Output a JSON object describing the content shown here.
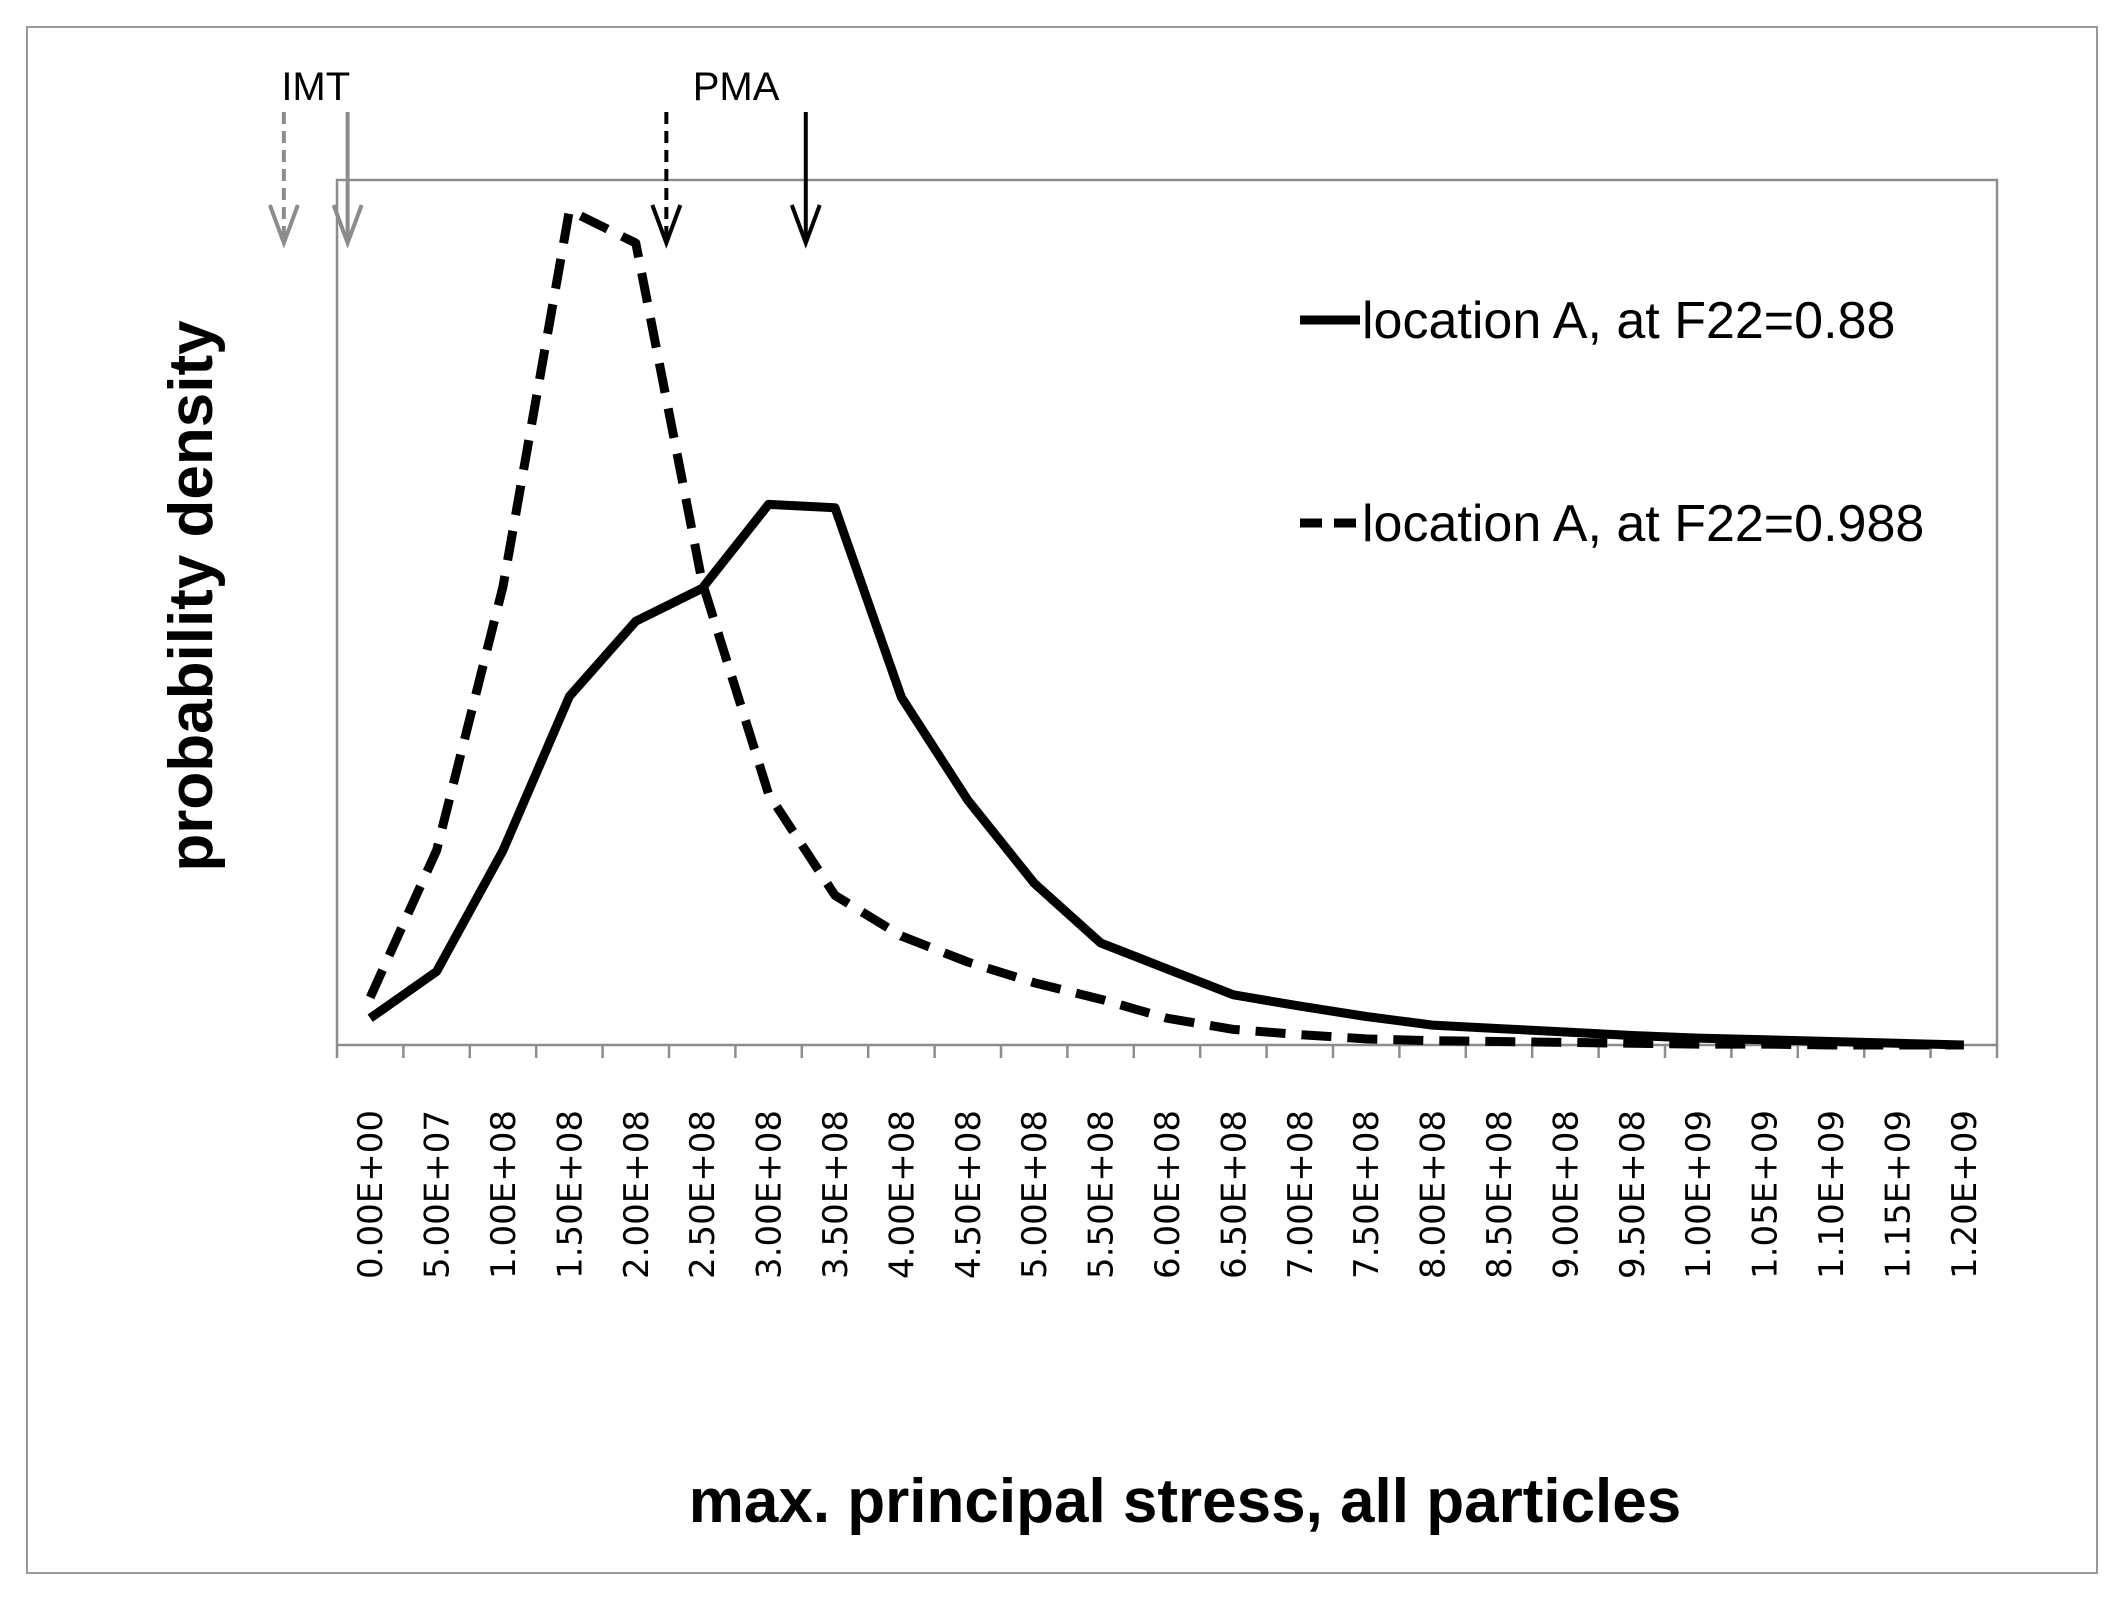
{
  "chart_data": {
    "type": "line",
    "title": "",
    "xlabel": "max. principal stress, all particles",
    "ylabel": "probability density",
    "x": [
      0,
      50000000,
      100000000,
      150000000,
      200000000,
      250000000,
      300000000,
      350000000,
      400000000,
      450000000,
      500000000,
      550000000,
      600000000,
      650000000,
      700000000,
      750000000,
      800000000,
      850000000,
      900000000,
      950000000,
      1000000000,
      1050000000,
      1100000000,
      1150000000,
      1200000000
    ],
    "tick_labels": [
      "0.00E+00",
      "5.00E+07",
      "1.00E+08",
      "1.50E+08",
      "2.00E+08",
      "2.50E+08",
      "3.00E+08",
      "3.50E+08",
      "4.00E+08",
      "4.50E+08",
      "5.00E+08",
      "5.50E+08",
      "6.00E+08",
      "6.50E+08",
      "7.00E+08",
      "7.50E+08",
      "8.00E+08",
      "8.50E+08",
      "9.00E+08",
      "9.50E+08",
      "1.00E+09",
      "1.05E+09",
      "1.10E+09",
      "1.15E+09",
      "1.20E+09"
    ],
    "ylim": [
      0,
      1.0
    ],
    "series": [
      {
        "name": "location A, at F22=0.88",
        "style": "solid",
        "values": [
          0.031,
          0.085,
          0.225,
          0.403,
          0.49,
          0.528,
          0.625,
          0.621,
          0.402,
          0.283,
          0.187,
          0.118,
          0.088,
          0.058,
          0.045,
          0.033,
          0.023,
          0.019,
          0.015,
          0.011,
          0.008,
          0.006,
          0.004,
          0.002,
          0.0
        ]
      },
      {
        "name": "location A, at F22=0.988",
        "style": "dashed",
        "values": [
          0.055,
          0.225,
          0.53,
          0.965,
          0.927,
          0.535,
          0.29,
          0.173,
          0.126,
          0.096,
          0.072,
          0.053,
          0.031,
          0.018,
          0.012,
          0.007,
          0.005,
          0.004,
          0.003,
          0.002,
          0.001,
          0.001,
          0.0,
          0.0,
          0.0
        ]
      }
    ],
    "legend_position": "top-right",
    "markers": [
      {
        "group": "IMT",
        "label": "IMT",
        "arrows": [
          {
            "x": -65000000,
            "style": "dashed",
            "color": "#8c8c8c"
          },
          {
            "x": -17000000,
            "style": "solid",
            "color": "#8c8c8c"
          }
        ]
      },
      {
        "group": "PMA",
        "label": "PMA",
        "arrows": [
          {
            "x": 223000000,
            "style": "dashed",
            "color": "#000000"
          },
          {
            "x": 328000000,
            "style": "solid",
            "color": "#000000"
          }
        ]
      }
    ],
    "grid": false
  }
}
